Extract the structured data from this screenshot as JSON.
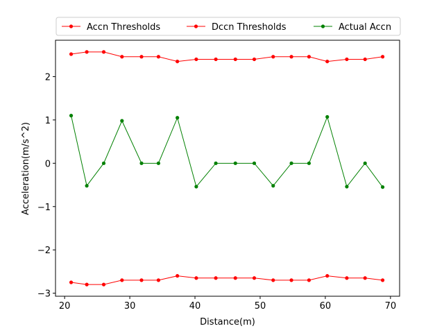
{
  "chart_data": {
    "type": "line",
    "xlabel": "Distance(m)",
    "ylabel": "Acceleration(m/s^2)",
    "xlim": [
      18.6,
      71.4
    ],
    "ylim": [
      -3.07,
      2.84
    ],
    "xticks": [
      20,
      30,
      40,
      50,
      60,
      70
    ],
    "yticks": [
      -3,
      -2,
      -1,
      0,
      1,
      2
    ],
    "ytick_labels": [
      "−3",
      "−2",
      "−1",
      "0",
      "1",
      "2"
    ],
    "grid": false,
    "legend_position": "top-center",
    "x": [
      21.0,
      23.4,
      26.0,
      28.8,
      31.8,
      34.4,
      37.3,
      40.2,
      43.2,
      46.2,
      49.1,
      52.0,
      54.8,
      57.5,
      60.3,
      63.3,
      66.1,
      68.8
    ],
    "series": [
      {
        "name": "Accn Thresholds",
        "color": "#ff0000",
        "values": [
          2.52,
          2.57,
          2.57,
          2.46,
          2.46,
          2.46,
          2.35,
          2.4,
          2.4,
          2.4,
          2.4,
          2.46,
          2.46,
          2.46,
          2.35,
          2.4,
          2.4,
          2.46
        ]
      },
      {
        "name": "Dccn Thresholds",
        "color": "#ff0000",
        "values": [
          -2.75,
          -2.8,
          -2.8,
          -2.7,
          -2.7,
          -2.7,
          -2.6,
          -2.65,
          -2.65,
          -2.65,
          -2.65,
          -2.7,
          -2.7,
          -2.7,
          -2.6,
          -2.65,
          -2.65,
          -2.7
        ]
      },
      {
        "name": "Actual Accn",
        "color": "#008000",
        "values": [
          1.1,
          -0.52,
          0.0,
          0.98,
          0.0,
          0.0,
          1.05,
          -0.54,
          0.0,
          0.0,
          0.0,
          -0.52,
          0.0,
          0.0,
          1.07,
          -0.54,
          0.0,
          -0.55
        ]
      }
    ]
  }
}
